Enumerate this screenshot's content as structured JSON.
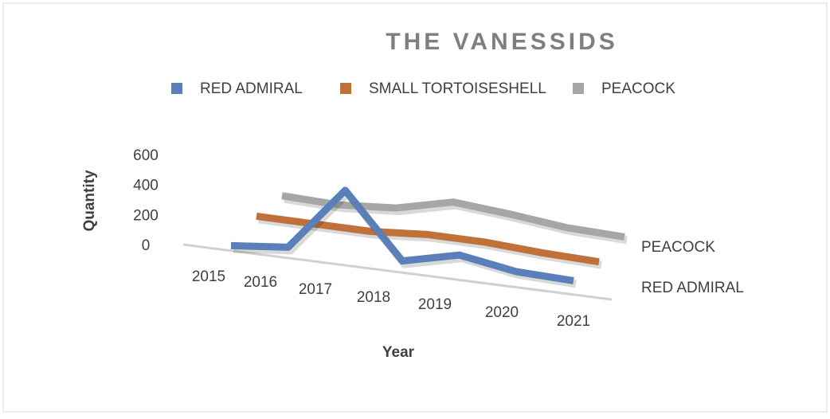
{
  "chart_data": {
    "type": "line3d",
    "title": "THE VANESSIDS",
    "x_label": "Year",
    "y_label": "Quantity",
    "categories": [
      "2015",
      "2016",
      "2017",
      "2018",
      "2019",
      "2020",
      "2021"
    ],
    "series": [
      {
        "name": "RED ADMIRAL",
        "color": "#5b7fb8",
        "values": [
          30,
          60,
          480,
          50,
          130,
          60,
          40
        ]
      },
      {
        "name": "SMALL TORTOISESHELL",
        "color": "#c0703a",
        "values": [
          120,
          110,
          100,
          120,
          110,
          80,
          60
        ]
      },
      {
        "name": "PEACOCK",
        "color": "#a6a6a6",
        "values": [
          150,
          130,
          150,
          230,
          190,
          140,
          120
        ]
      }
    ],
    "ylim": [
      0,
      600
    ],
    "yticks": [
      0,
      200,
      400,
      600
    ],
    "legend": "top"
  }
}
